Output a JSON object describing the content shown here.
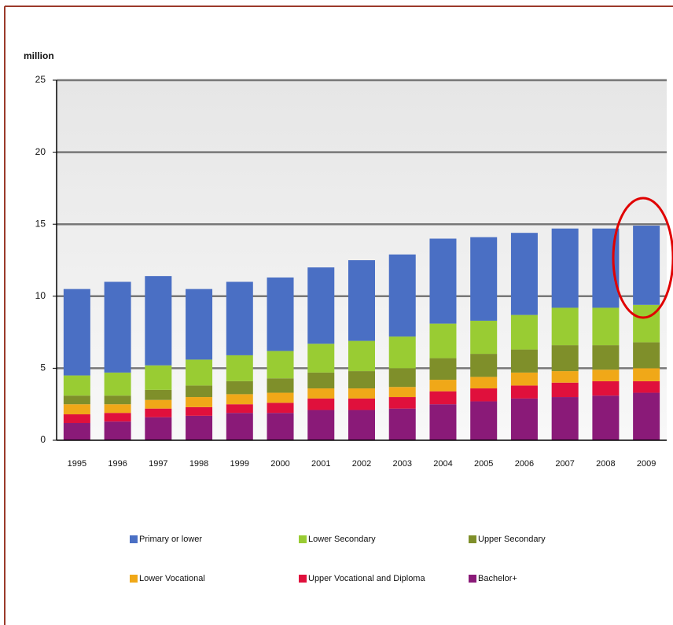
{
  "chart_data": {
    "type": "bar",
    "stacked": true,
    "y_label": "million",
    "categories": [
      "1995",
      "1996",
      "1997",
      "1998",
      "1999",
      "2000",
      "2001",
      "2002",
      "2003",
      "2004",
      "2005",
      "2006",
      "2007",
      "2008",
      "2009"
    ],
    "series": [
      {
        "name": "Primary or lower",
        "color": "#4a6fc4",
        "values": [
          6.0,
          6.3,
          6.2,
          4.9,
          5.1,
          5.1,
          5.3,
          5.6,
          5.7,
          5.9,
          5.8,
          5.7,
          5.5,
          5.5,
          5.5
        ]
      },
      {
        "name": "Lower Secondary",
        "color": "#99cc33",
        "values": [
          1.4,
          1.6,
          1.7,
          1.8,
          1.8,
          1.9,
          2.0,
          2.1,
          2.2,
          2.4,
          2.3,
          2.4,
          2.6,
          2.6,
          2.6
        ]
      },
      {
        "name": "Upper Secondary",
        "color": "#7f8f2a",
        "values": [
          0.6,
          0.6,
          0.7,
          0.8,
          0.9,
          1.0,
          1.1,
          1.2,
          1.3,
          1.5,
          1.6,
          1.6,
          1.8,
          1.7,
          1.8
        ]
      },
      {
        "name": "Lower Vocational",
        "color": "#f0a818",
        "values": [
          0.7,
          0.6,
          0.6,
          0.7,
          0.7,
          0.7,
          0.7,
          0.7,
          0.7,
          0.8,
          0.8,
          0.9,
          0.8,
          0.8,
          0.9
        ]
      },
      {
        "name": "Upper Vocational and Diploma",
        "color": "#e0103c",
        "values": [
          0.6,
          0.6,
          0.6,
          0.6,
          0.6,
          0.7,
          0.8,
          0.8,
          0.8,
          0.9,
          0.9,
          0.9,
          1.0,
          1.0,
          0.8
        ]
      },
      {
        "name": "Bachelor+",
        "color": "#8a1a78",
        "values": [
          1.2,
          1.3,
          1.6,
          1.7,
          1.9,
          1.9,
          2.1,
          2.1,
          2.2,
          2.5,
          2.7,
          2.9,
          3.0,
          3.1,
          3.3
        ]
      }
    ],
    "ylim": [
      0,
      25
    ],
    "yticks": [
      0,
      5,
      10,
      15,
      20,
      25
    ],
    "grid": true
  }
}
